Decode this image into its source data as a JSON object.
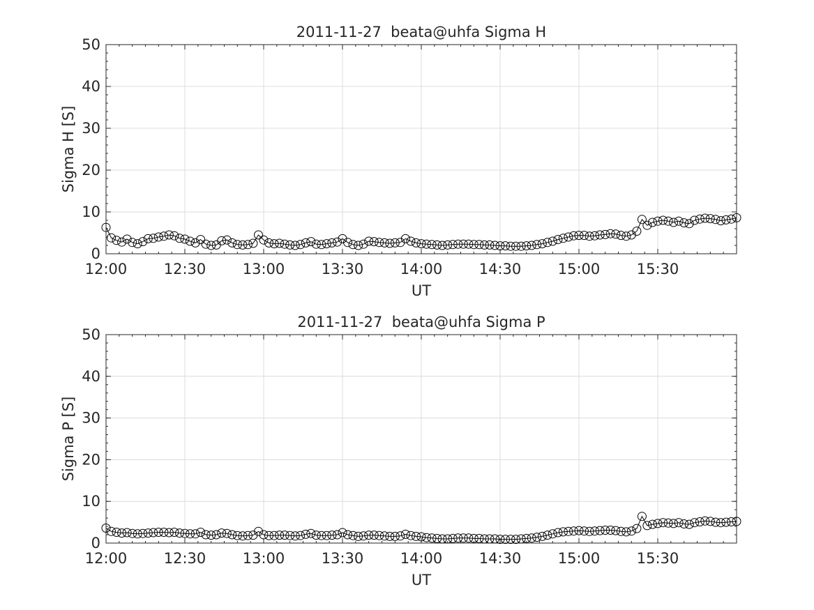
{
  "chart_data": [
    {
      "type": "scatter",
      "title": "2011-11-27  beata@uhfa Sigma H",
      "xlabel": "UT",
      "ylabel": "Sigma H [S]",
      "xlim": [
        "12:00",
        "16:00"
      ],
      "ylim": [
        0,
        50
      ],
      "xticks": [
        "12:00",
        "12:30",
        "13:00",
        "13:30",
        "14:00",
        "14:30",
        "15:00",
        "15:30"
      ],
      "yticks": [
        "0",
        "10",
        "20",
        "30",
        "40",
        "50"
      ],
      "grid": true,
      "marker": "open-circle-line",
      "series": [
        {
          "x": [
            "12:00",
            "12:02",
            "12:04",
            "12:06",
            "12:08",
            "12:10",
            "12:12",
            "12:14",
            "12:16",
            "12:18",
            "12:20",
            "12:22",
            "12:24",
            "12:26",
            "12:28",
            "12:30",
            "12:32",
            "12:34",
            "12:36",
            "12:38",
            "12:40",
            "12:42",
            "12:44",
            "12:46",
            "12:48",
            "12:50",
            "12:52",
            "12:54",
            "12:56",
            "12:58",
            "13:00",
            "13:02",
            "13:04",
            "13:06",
            "13:08",
            "13:10",
            "13:12",
            "13:14",
            "13:16",
            "13:18",
            "13:20",
            "13:22",
            "13:24",
            "13:26",
            "13:28",
            "13:30",
            "13:32",
            "13:34",
            "13:36",
            "13:38",
            "13:40",
            "13:42",
            "13:44",
            "13:46",
            "13:48",
            "13:50",
            "13:52",
            "13:54",
            "13:56",
            "13:58",
            "14:00",
            "14:02",
            "14:04",
            "14:06",
            "14:08",
            "14:10",
            "14:12",
            "14:14",
            "14:16",
            "14:18",
            "14:20",
            "14:22",
            "14:24",
            "14:26",
            "14:28",
            "14:30",
            "14:32",
            "14:34",
            "14:36",
            "14:38",
            "14:40",
            "14:42",
            "14:44",
            "14:46",
            "14:48",
            "14:50",
            "14:52",
            "14:54",
            "14:56",
            "14:58",
            "15:00",
            "15:02",
            "15:04",
            "15:06",
            "15:08",
            "15:10",
            "15:12",
            "15:14",
            "15:16",
            "15:18",
            "15:20",
            "15:22",
            "15:24",
            "15:26",
            "15:28",
            "15:30",
            "15:32",
            "15:34",
            "15:36",
            "15:38",
            "15:40",
            "15:42",
            "15:44",
            "15:46",
            "15:48",
            "15:50",
            "15:52",
            "15:54",
            "15:56",
            "15:58",
            "16:00"
          ],
          "values": [
            6.3,
            3.8,
            3.2,
            2.8,
            3.5,
            2.7,
            2.4,
            2.9,
            3.6,
            3.7,
            4.0,
            4.2,
            4.5,
            4.3,
            3.7,
            3.5,
            3.0,
            2.6,
            3.4,
            2.3,
            2.0,
            2.1,
            3.1,
            3.3,
            2.6,
            2.2,
            2.1,
            2.2,
            2.5,
            4.5,
            3.3,
            2.6,
            2.4,
            2.5,
            2.3,
            2.1,
            2.0,
            2.2,
            2.6,
            2.9,
            2.3,
            2.2,
            2.4,
            2.6,
            2.8,
            3.6,
            2.7,
            2.2,
            2.0,
            2.3,
            3.0,
            2.9,
            2.7,
            2.6,
            2.5,
            2.6,
            2.7,
            3.6,
            3.0,
            2.6,
            2.4,
            2.3,
            2.2,
            2.1,
            2.0,
            2.1,
            2.2,
            2.3,
            2.3,
            2.3,
            2.2,
            2.2,
            2.1,
            2.1,
            2.0,
            1.9,
            1.9,
            1.8,
            1.8,
            1.8,
            1.9,
            2.0,
            2.2,
            2.4,
            2.7,
            3.0,
            3.4,
            3.7,
            4.0,
            4.3,
            4.4,
            4.4,
            4.2,
            4.3,
            4.5,
            4.6,
            4.8,
            4.7,
            4.4,
            4.2,
            4.5,
            5.4,
            8.2,
            6.8,
            7.5,
            7.8,
            8.0,
            7.8,
            7.5,
            7.8,
            7.4,
            7.2,
            8.0,
            8.3,
            8.5,
            8.4,
            8.2,
            7.9,
            8.1,
            8.3,
            8.6
          ]
        }
      ]
    },
    {
      "type": "scatter",
      "title": "2011-11-27  beata@uhfa Sigma P",
      "xlabel": "UT",
      "ylabel": "Sigma P [S]",
      "xlim": [
        "12:00",
        "16:00"
      ],
      "ylim": [
        0,
        50
      ],
      "xticks": [
        "12:00",
        "12:30",
        "13:00",
        "13:30",
        "14:00",
        "14:30",
        "15:00",
        "15:30"
      ],
      "yticks": [
        "0",
        "10",
        "20",
        "30",
        "40",
        "50"
      ],
      "grid": true,
      "marker": "open-circle-line",
      "series": [
        {
          "x": [
            "12:00",
            "12:02",
            "12:04",
            "12:06",
            "12:08",
            "12:10",
            "12:12",
            "12:14",
            "12:16",
            "12:18",
            "12:20",
            "12:22",
            "12:24",
            "12:26",
            "12:28",
            "12:30",
            "12:32",
            "12:34",
            "12:36",
            "12:38",
            "12:40",
            "12:42",
            "12:44",
            "12:46",
            "12:48",
            "12:50",
            "12:52",
            "12:54",
            "12:56",
            "12:58",
            "13:00",
            "13:02",
            "13:04",
            "13:06",
            "13:08",
            "13:10",
            "13:12",
            "13:14",
            "13:16",
            "13:18",
            "13:20",
            "13:22",
            "13:24",
            "13:26",
            "13:28",
            "13:30",
            "13:32",
            "13:34",
            "13:36",
            "13:38",
            "13:40",
            "13:42",
            "13:44",
            "13:46",
            "13:48",
            "13:50",
            "13:52",
            "13:54",
            "13:56",
            "13:58",
            "14:00",
            "14:02",
            "14:04",
            "14:06",
            "14:08",
            "14:10",
            "14:12",
            "14:14",
            "14:16",
            "14:18",
            "14:20",
            "14:22",
            "14:24",
            "14:26",
            "14:28",
            "14:30",
            "14:32",
            "14:34",
            "14:36",
            "14:38",
            "14:40",
            "14:42",
            "14:44",
            "14:46",
            "14:48",
            "14:50",
            "14:52",
            "14:54",
            "14:56",
            "14:58",
            "15:00",
            "15:02",
            "15:04",
            "15:06",
            "15:08",
            "15:10",
            "15:12",
            "15:14",
            "15:16",
            "15:18",
            "15:20",
            "15:22",
            "15:24",
            "15:26",
            "15:28",
            "15:30",
            "15:32",
            "15:34",
            "15:36",
            "15:38",
            "15:40",
            "15:42",
            "15:44",
            "15:46",
            "15:48",
            "15:50",
            "15:52",
            "15:54",
            "15:56",
            "15:58",
            "16:00"
          ],
          "values": [
            3.6,
            2.8,
            2.6,
            2.4,
            2.5,
            2.3,
            2.2,
            2.3,
            2.4,
            2.5,
            2.6,
            2.6,
            2.5,
            2.6,
            2.4,
            2.3,
            2.2,
            2.2,
            2.6,
            2.0,
            1.9,
            2.0,
            2.4,
            2.3,
            2.0,
            1.8,
            1.7,
            1.8,
            1.9,
            2.8,
            2.0,
            1.8,
            1.8,
            1.9,
            1.9,
            1.8,
            1.7,
            1.8,
            2.1,
            2.3,
            1.9,
            1.8,
            1.8,
            1.9,
            2.0,
            2.5,
            2.0,
            1.8,
            1.6,
            1.7,
            1.9,
            1.9,
            1.8,
            1.7,
            1.6,
            1.6,
            1.7,
            2.1,
            1.8,
            1.6,
            1.5,
            1.3,
            1.2,
            1.1,
            1.0,
            1.0,
            1.1,
            1.2,
            1.2,
            1.2,
            1.1,
            1.1,
            1.0,
            1.0,
            1.0,
            0.9,
            0.9,
            0.9,
            0.9,
            1.0,
            1.1,
            1.2,
            1.4,
            1.6,
            1.9,
            2.2,
            2.5,
            2.7,
            2.8,
            2.9,
            3.0,
            2.9,
            2.8,
            2.9,
            3.0,
            3.1,
            3.1,
            3.0,
            2.8,
            2.7,
            2.9,
            3.5,
            6.4,
            4.2,
            4.5,
            4.7,
            4.9,
            4.8,
            4.7,
            4.9,
            4.6,
            4.5,
            4.9,
            5.1,
            5.3,
            5.2,
            5.0,
            4.9,
            5.0,
            5.1,
            5.2
          ]
        }
      ]
    }
  ]
}
